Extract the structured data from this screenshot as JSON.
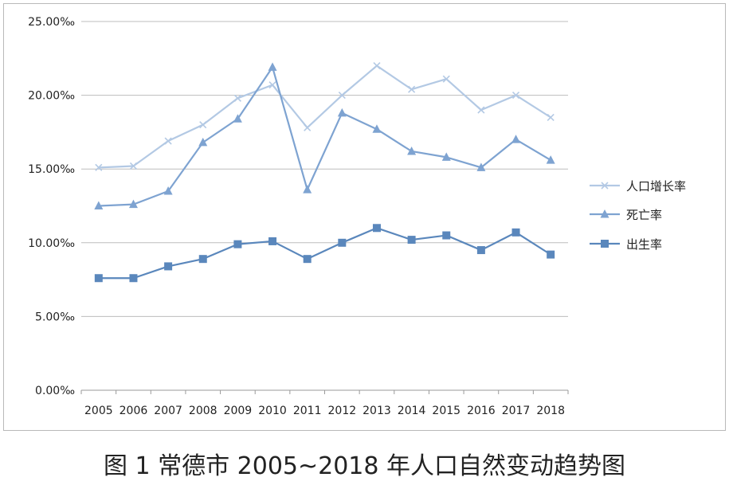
{
  "caption": "图 1 常德市 2005~2018 年人口自然变动趋势图",
  "chart_data": {
    "type": "line",
    "categories": [
      "2005",
      "2006",
      "2007",
      "2008",
      "2009",
      "2010",
      "2011",
      "2012",
      "2013",
      "2014",
      "2015",
      "2016",
      "2017",
      "2018"
    ],
    "ylim": [
      0,
      25
    ],
    "y_ticks": [
      "0.00‰",
      "5.00‰",
      "10.00‰",
      "15.00‰",
      "20.00‰",
      "25.00‰"
    ],
    "grid": true,
    "legend_position": "right",
    "series": [
      {
        "name": "人口增长率",
        "color": "#b3c9e4",
        "marker": "x",
        "values": [
          15.1,
          15.2,
          16.9,
          18.0,
          19.8,
          20.7,
          17.8,
          20.0,
          22.0,
          20.4,
          21.1,
          19.0,
          20.0,
          18.5
        ]
      },
      {
        "name": "死亡率",
        "color": "#7ea3d1",
        "marker": "triangle",
        "values": [
          12.5,
          12.6,
          13.5,
          16.8,
          18.4,
          21.9,
          13.6,
          18.8,
          17.7,
          16.2,
          15.8,
          15.1,
          17.0,
          15.6
        ]
      },
      {
        "name": "出生率",
        "color": "#5a87bc",
        "marker": "square",
        "values": [
          7.6,
          7.6,
          8.4,
          8.9,
          9.9,
          10.1,
          8.9,
          10.0,
          11.0,
          10.2,
          10.5,
          9.5,
          10.7,
          9.2
        ]
      }
    ]
  }
}
